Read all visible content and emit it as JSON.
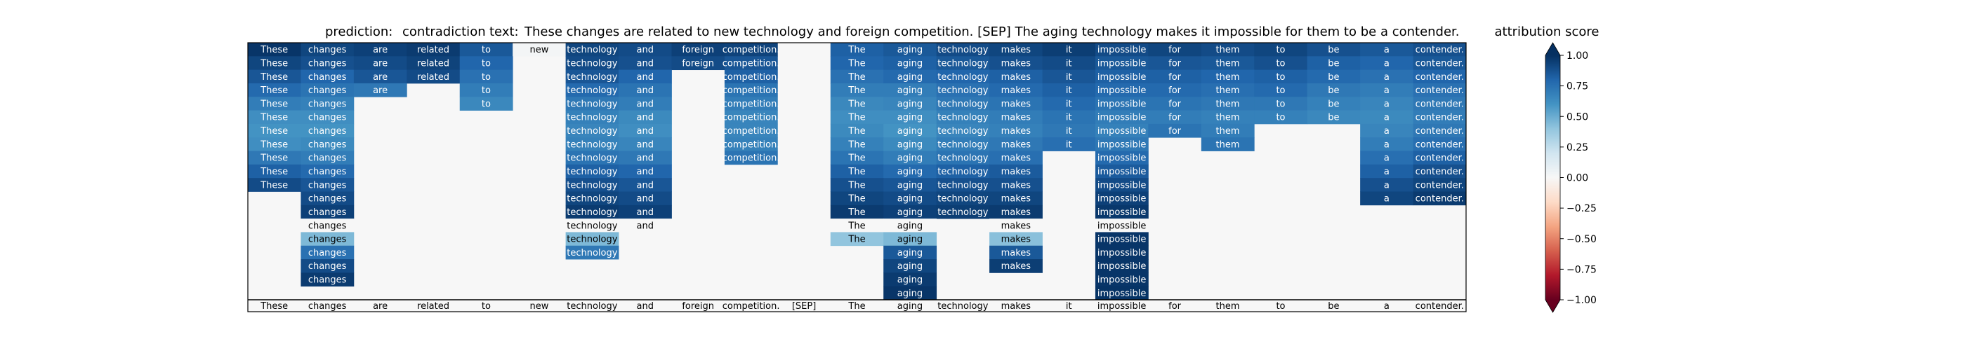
{
  "chart_data": {
    "type": "heatmap",
    "title": {
      "prediction_label": "prediction:",
      "prediction_value": "contradiction",
      "text_label": "text:",
      "text_value": "These changes are related to new technology and foreign competition. [SEP] The aging technology makes it impossible for them to be a contender."
    },
    "tokens": [
      "These",
      "changes",
      "are",
      "related",
      "to",
      "new",
      "technology",
      "and",
      "foreign",
      "competition.",
      "[SEP]",
      "The",
      "aging",
      "technology",
      "makes",
      "it",
      "impossible",
      "for",
      "them",
      "to",
      "be",
      "a",
      "contender."
    ],
    "x_tick_labels": [
      "These",
      "changes",
      "are",
      "related",
      "to",
      "new",
      "technology",
      "and",
      "foreign",
      "competition.",
      "[SEP]",
      "The",
      "aging",
      "technology",
      "makes",
      "it",
      "impossible",
      "for",
      "them",
      "to",
      "be",
      "a",
      "contender."
    ],
    "rows": [
      {
        "0": 0.98,
        "1": 0.92,
        "2": 0.94,
        "3": 0.96,
        "4": 0.85,
        "5": 0.02,
        "6": 0.92,
        "7": 0.9,
        "8": 0.94,
        "9": 0.93,
        "11": 0.82,
        "12": 0.85,
        "13": 0.9,
        "14": 0.92,
        "15": 0.95,
        "16": 0.9,
        "17": 0.92,
        "18": 0.9,
        "19": 0.92,
        "20": 0.88,
        "21": 0.85,
        "22": 0.88
      },
      {
        "0": 0.92,
        "1": 0.88,
        "2": 0.9,
        "3": 0.93,
        "4": 0.8,
        "6": 0.9,
        "7": 0.88,
        "8": 0.9,
        "9": 0.86,
        "11": 0.8,
        "12": 0.82,
        "13": 0.85,
        "14": 0.88,
        "15": 0.9,
        "16": 0.85,
        "17": 0.86,
        "18": 0.85,
        "19": 0.88,
        "20": 0.82,
        "21": 0.8,
        "22": 0.85
      },
      {
        "0": 0.86,
        "1": 0.8,
        "2": 0.86,
        "3": 0.9,
        "4": 0.75,
        "6": 0.86,
        "7": 0.8,
        "9": 0.82,
        "11": 0.75,
        "12": 0.78,
        "13": 0.8,
        "14": 0.82,
        "15": 0.86,
        "16": 0.82,
        "17": 0.82,
        "18": 0.8,
        "19": 0.82,
        "20": 0.78,
        "21": 0.75,
        "22": 0.8
      },
      {
        "0": 0.78,
        "1": 0.74,
        "2": 0.72,
        "4": 0.7,
        "6": 0.78,
        "7": 0.74,
        "9": 0.74,
        "11": 0.7,
        "12": 0.7,
        "13": 0.75,
        "14": 0.78,
        "15": 0.82,
        "16": 0.78,
        "17": 0.78,
        "18": 0.76,
        "19": 0.78,
        "20": 0.72,
        "21": 0.7,
        "22": 0.75
      },
      {
        "0": 0.7,
        "1": 0.68,
        "4": 0.65,
        "6": 0.72,
        "7": 0.7,
        "9": 0.7,
        "11": 0.65,
        "12": 0.66,
        "13": 0.72,
        "14": 0.74,
        "15": 0.78,
        "16": 0.74,
        "17": 0.74,
        "18": 0.72,
        "19": 0.72,
        "20": 0.68,
        "21": 0.66,
        "22": 0.72
      },
      {
        "0": 0.62,
        "1": 0.62,
        "6": 0.68,
        "7": 0.64,
        "9": 0.66,
        "11": 0.62,
        "12": 0.62,
        "13": 0.68,
        "14": 0.7,
        "15": 0.74,
        "16": 0.7,
        "17": 0.7,
        "18": 0.68,
        "19": 0.68,
        "20": 0.65,
        "21": 0.64,
        "22": 0.7
      },
      {
        "0": 0.6,
        "1": 0.6,
        "6": 0.66,
        "7": 0.62,
        "9": 0.66,
        "11": 0.64,
        "12": 0.6,
        "13": 0.66,
        "14": 0.68,
        "15": 0.72,
        "16": 0.68,
        "17": 0.74,
        "18": 0.7,
        "21": 0.66,
        "22": 0.72
      },
      {
        "0": 0.62,
        "1": 0.64,
        "6": 0.68,
        "7": 0.66,
        "9": 0.68,
        "11": 0.68,
        "12": 0.64,
        "13": 0.7,
        "14": 0.72,
        "15": 0.76,
        "16": 0.72,
        "18": 0.74,
        "21": 0.7,
        "22": 0.76
      },
      {
        "0": 0.72,
        "1": 0.7,
        "6": 0.74,
        "7": 0.72,
        "9": 0.74,
        "11": 0.74,
        "12": 0.7,
        "13": 0.74,
        "14": 0.76,
        "16": 0.78,
        "21": 0.76,
        "22": 0.82
      },
      {
        "0": 0.82,
        "1": 0.78,
        "6": 0.82,
        "7": 0.8,
        "11": 0.82,
        "12": 0.78,
        "13": 0.82,
        "14": 0.84,
        "16": 0.84,
        "21": 0.82,
        "22": 0.88
      },
      {
        "0": 0.9,
        "1": 0.86,
        "6": 0.88,
        "7": 0.86,
        "11": 0.88,
        "12": 0.86,
        "13": 0.88,
        "14": 0.88,
        "16": 0.9,
        "21": 0.88,
        "22": 0.92
      },
      {
        "1": 0.9,
        "6": 0.92,
        "7": 0.9,
        "11": 0.92,
        "12": 0.9,
        "13": 0.92,
        "14": 0.92,
        "16": 0.94,
        "21": 0.92,
        "22": 0.96
      },
      {
        "1": 0.94,
        "6": 0.96,
        "7": 0.94,
        "11": 0.96,
        "12": 0.94,
        "13": 0.95,
        "14": 0.96,
        "16": 0.97
      },
      {
        "1": 0.0,
        "6": 0.0,
        "7": 0.0,
        "11": 0.0,
        "12": 0.0,
        "14": 0.0,
        "16": 0.0
      },
      {
        "1": 0.45,
        "6": 0.45,
        "11": 0.4,
        "12": 0.45,
        "14": 0.42,
        "16": 0.98
      },
      {
        "1": 0.75,
        "6": 0.72,
        "12": 0.85,
        "14": 0.85,
        "16": 0.98
      },
      {
        "1": 0.9,
        "12": 0.92,
        "14": 0.95,
        "16": 0.98
      },
      {
        "1": 0.96,
        "12": 0.96,
        "16": 0.98
      },
      {
        "12": 0.98,
        "16": 0.99
      }
    ],
    "colorbar": {
      "label": "attribution score",
      "min": -1.0,
      "max": 1.0,
      "ticks": [
        "1.00",
        "0.75",
        "0.50",
        "0.25",
        "0.00",
        "−0.25",
        "−0.50",
        "−0.75",
        "−1.00"
      ],
      "colormap": "RdBu",
      "extend": "both"
    },
    "grid": false
  }
}
